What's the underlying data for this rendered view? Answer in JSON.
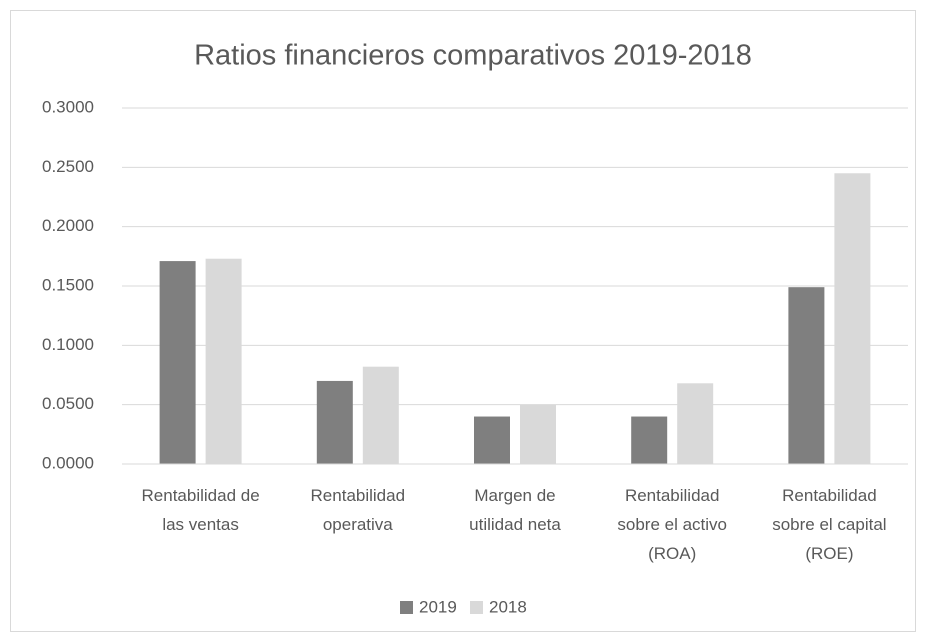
{
  "chart_data": {
    "type": "bar",
    "title": "Ratios financieros comparativos 2019-2018",
    "categories": [
      "Rentabilidad de las ventas",
      "Rentabilidad operativa",
      "Margen de utilidad neta",
      "Rentabilidad sobre el activo (ROA)",
      "Rentabilidad sobre el capital (ROE)"
    ],
    "series": [
      {
        "name": "2019",
        "color": "#7f7f7f",
        "values": [
          0.171,
          0.07,
          0.04,
          0.04,
          0.149
        ]
      },
      {
        "name": "2018",
        "color": "#d9d9d9",
        "values": [
          0.173,
          0.082,
          0.05,
          0.068,
          0.245
        ]
      }
    ],
    "ylim": [
      0,
      0.3
    ],
    "yticks": [
      {
        "value": 0,
        "label": "0.0000"
      },
      {
        "value": 0.05,
        "label": "0.0500"
      },
      {
        "value": 0.1,
        "label": "0.1000"
      },
      {
        "value": 0.15,
        "label": "0.1500"
      },
      {
        "value": 0.2,
        "label": "0.2000"
      },
      {
        "value": 0.25,
        "label": "0.2500"
      },
      {
        "value": 0.3,
        "label": "0.3000"
      }
    ],
    "grid": true,
    "legend": "bottom"
  }
}
